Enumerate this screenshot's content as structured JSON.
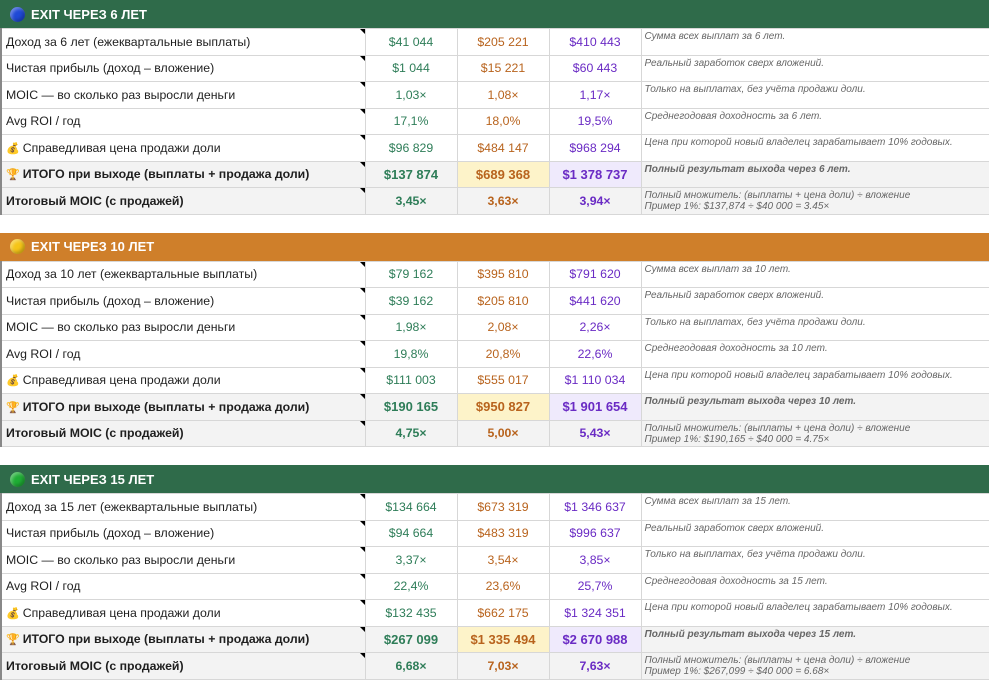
{
  "colors": {
    "green_header": "#2f6b4a",
    "orange_header": "#cf7f2a",
    "green_dot": "#1fae35",
    "blue_dot": "#1f49d6",
    "yellow_dot": "#f5c518"
  },
  "sections": [
    {
      "title": "EXIT ЧЕРЕЗ 6 ЛЕТ",
      "rows": [
        {
          "label": "Доход за 6 лет (ежеквартальные выплаты)",
          "v": [
            "$41 044",
            "$205 221",
            "$410 443"
          ],
          "note": "Сумма всех выплат за 6 лет."
        },
        {
          "label": "Чистая прибыль (доход – вложение)",
          "v": [
            "$1 044",
            "$15 221",
            "$60 443"
          ],
          "note": "Реальный заработок сверх вложений."
        },
        {
          "label": "MOIC — во сколько раз выросли деньги",
          "v": [
            "1,03×",
            "1,08×",
            "1,17×"
          ],
          "note": "Только на выплатах, без учёта продажи доли."
        },
        {
          "label": "Avg ROI / год",
          "v": [
            "17,1%",
            "18,0%",
            "19,5%"
          ],
          "note": "Среднегодовая доходность за 6 лет."
        },
        {
          "icon": "💰",
          "label": "Справедливая цена продажи доли",
          "v": [
            "$96 829",
            "$484 147",
            "$968 294"
          ],
          "note": "Цена при которой новый владелец зарабатывает 10% годовых."
        },
        {
          "icon": "🏆",
          "label": "ИТОГО при выходе (выплаты + продажа доли)",
          "v": [
            "$137 874",
            "$689 368",
            "$1 378 737"
          ],
          "note": "Полный результат выхода через 6 лет."
        },
        {
          "label": "Итоговый MOIC (с продажей)",
          "v": [
            "3,45×",
            "3,63×",
            "3,94×"
          ],
          "note": "Полный множитель: (выплаты + цена доли) ÷ вложение",
          "note2": "Пример 1%: $137,874 ÷ $40 000 = 3.45×"
        }
      ]
    },
    {
      "title": "EXIT ЧЕРЕЗ 10 ЛЕТ",
      "rows": [
        {
          "label": "Доход за 10 лет (ежеквартальные выплаты)",
          "v": [
            "$79 162",
            "$395 810",
            "$791 620"
          ],
          "note": "Сумма всех выплат за 10 лет."
        },
        {
          "label": "Чистая прибыль (доход – вложение)",
          "v": [
            "$39 162",
            "$205 810",
            "$441 620"
          ],
          "note": "Реальный заработок сверх вложений."
        },
        {
          "label": "MOIC — во сколько раз выросли деньги",
          "v": [
            "1,98×",
            "2,08×",
            "2,26×"
          ],
          "note": "Только на выплатах, без учёта продажи доли."
        },
        {
          "label": "Avg ROI / год",
          "v": [
            "19,8%",
            "20,8%",
            "22,6%"
          ],
          "note": "Среднегодовая доходность за 10 лет."
        },
        {
          "icon": "💰",
          "label": "Справедливая цена продажи доли",
          "v": [
            "$111 003",
            "$555 017",
            "$1 110 034"
          ],
          "note": "Цена при которой новый владелец зарабатывает 10% годовых."
        },
        {
          "icon": "🏆",
          "label": "ИТОГО при выходе (выплаты + продажа доли)",
          "v": [
            "$190 165",
            "$950 827",
            "$1 901 654"
          ],
          "note": "Полный результат выхода через 10 лет."
        },
        {
          "label": "Итоговый MOIC (с продажей)",
          "v": [
            "4,75×",
            "5,00×",
            "5,43×"
          ],
          "note": "Полный множитель: (выплаты + цена доли) ÷ вложение",
          "note2": "Пример 1%: $190,165 ÷ $40 000 = 4.75×"
        }
      ]
    },
    {
      "title": "EXIT ЧЕРЕЗ 15 ЛЕТ",
      "rows": [
        {
          "label": "Доход за 15 лет (ежеквартальные выплаты)",
          "v": [
            "$134 664",
            "$673 319",
            "$1 346 637"
          ],
          "note": "Сумма всех выплат за 15 лет."
        },
        {
          "label": "Чистая прибыль (доход – вложение)",
          "v": [
            "$94 664",
            "$483 319",
            "$996 637"
          ],
          "note": "Реальный заработок сверх вложений."
        },
        {
          "label": "MOIC — во сколько раз выросли деньги",
          "v": [
            "3,37×",
            "3,54×",
            "3,85×"
          ],
          "note": "Только на выплатах, без учёта продажи доли."
        },
        {
          "label": "Avg ROI / год",
          "v": [
            "22,4%",
            "23,6%",
            "25,7%"
          ],
          "note": "Среднегодовая доходность за 15 лет."
        },
        {
          "icon": "💰",
          "label": "Справедливая цена продажи доли",
          "v": [
            "$132 435",
            "$662 175",
            "$1 324 351"
          ],
          "note": "Цена при которой новый владелец зарабатывает 10% годовых."
        },
        {
          "icon": "🏆",
          "label": "ИТОГО при выходе (выплаты + продажа доли)",
          "v": [
            "$267 099",
            "$1 335 494",
            "$2 670 988"
          ],
          "note": "Полный результат выхода через 15 лет."
        },
        {
          "label": "Итоговый MOIC (с продажей)",
          "v": [
            "6,68×",
            "7,03×",
            "7,63×"
          ],
          "note": "Полный множитель: (выплаты + цена доли) ÷ вложение",
          "note2": "Пример 1%: $267,099 ÷ $40 000 = 6.68×"
        }
      ]
    }
  ]
}
